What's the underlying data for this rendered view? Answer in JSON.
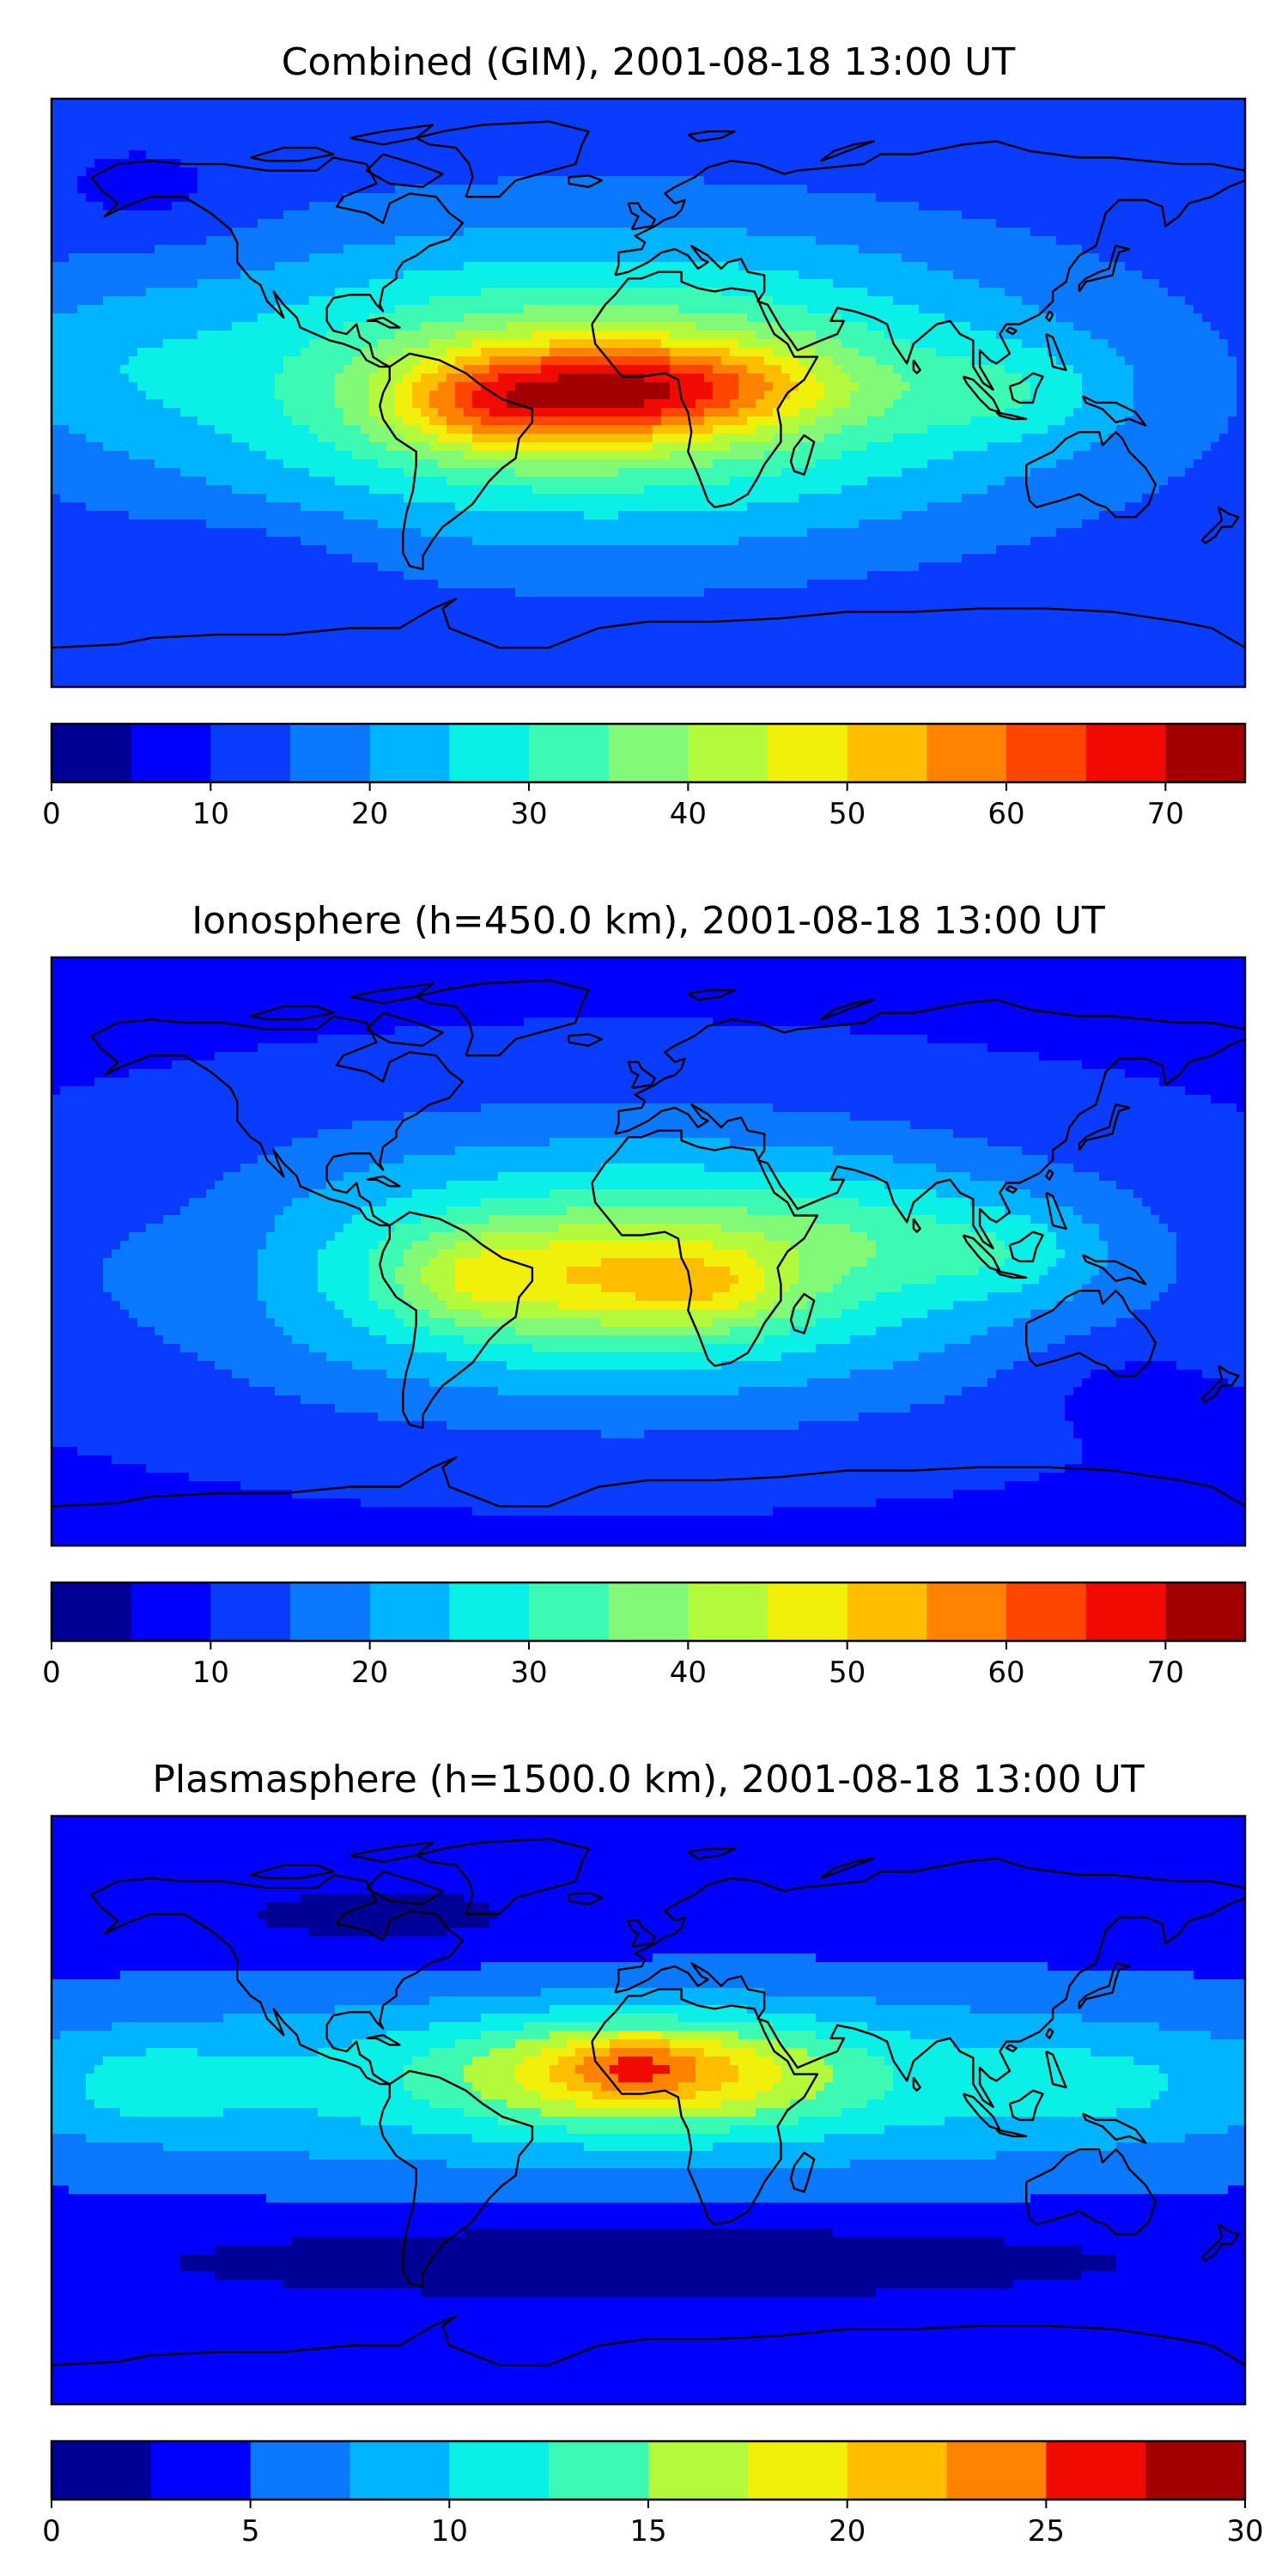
{
  "panels": [
    {
      "title": "Combined (GIM), 2001-08-18 13:00 UT",
      "colorbar": {
        "min": 0,
        "max": 75,
        "step": 5,
        "ticks": [
          0,
          10,
          20,
          30,
          40,
          50,
          60,
          70
        ]
      },
      "field": {
        "background": 11,
        "blobs": [
          {
            "lon": -14,
            "lat": 2,
            "rlon": 135,
            "rlat": 45,
            "amp": 30
          },
          {
            "lon": -20,
            "lat": 0,
            "rlon": 50,
            "rlat": 16,
            "amp": 26
          },
          {
            "lon": 22,
            "lat": 2,
            "rlon": 42,
            "rlat": 13,
            "amp": 12
          },
          {
            "lon": -50,
            "lat": -5,
            "rlon": 26,
            "rlat": 14,
            "amp": 10
          },
          {
            "lon": 110,
            "lat": 0,
            "rlon": 32,
            "rlat": 15,
            "amp": 7
          },
          {
            "lon": -170,
            "lat": 10,
            "rlon": 40,
            "rlat": 25,
            "amp": 5
          },
          {
            "lon": -150,
            "lat": 60,
            "rlon": 30,
            "rlat": 15,
            "amp": -4
          },
          {
            "lon": -120,
            "lat": -50,
            "rlon": 40,
            "rlat": 15,
            "amp": -3
          }
        ]
      }
    },
    {
      "title": "Ionosphere  (h=450.0 km), 2001-08-18 13:00 UT",
      "colorbar": {
        "min": 0,
        "max": 75,
        "step": 5,
        "ticks": [
          0,
          10,
          20,
          30,
          40,
          50,
          60,
          70
        ]
      },
      "field": {
        "background": 9,
        "blobs": [
          {
            "lon": -8,
            "lat": -5,
            "rlon": 135,
            "rlat": 42,
            "amp": 26
          },
          {
            "lon": -18,
            "lat": -8,
            "rlon": 45,
            "rlat": 18,
            "amp": 14
          },
          {
            "lon": 20,
            "lat": -12,
            "rlon": 25,
            "rlat": 12,
            "amp": 10
          },
          {
            "lon": -55,
            "lat": -8,
            "rlon": 22,
            "rlat": 14,
            "amp": 8
          },
          {
            "lon": 60,
            "lat": 5,
            "rlon": 55,
            "rlat": 18,
            "amp": 7
          },
          {
            "lon": 110,
            "lat": 0,
            "rlon": 28,
            "rlat": 14,
            "amp": 6
          },
          {
            "lon": -130,
            "lat": 0,
            "rlon": 30,
            "rlat": 30,
            "amp": -3
          },
          {
            "lon": 140,
            "lat": -40,
            "rlon": 30,
            "rlat": 15,
            "amp": -4
          }
        ]
      }
    },
    {
      "title": "Plasmasphere (h=1500.0 km), 2001-08-18 13:00 UT",
      "colorbar": {
        "min": 0,
        "max": 30,
        "step": 2.5,
        "ticks": [
          0,
          5,
          10,
          15,
          20,
          25,
          30
        ]
      },
      "field": {
        "background": 3.5,
        "blobs": [
          {
            "lon": 0,
            "lat": 8,
            "rlon": 250,
            "rlat": 30,
            "amp": 8
          },
          {
            "lon": 0,
            "lat": 12,
            "rlon": 55,
            "rlat": 16,
            "amp": 11
          },
          {
            "lon": -5,
            "lat": 14,
            "rlon": 18,
            "rlat": 8,
            "amp": 4
          },
          {
            "lon": -150,
            "lat": 8,
            "rlon": 25,
            "rlat": 12,
            "amp": 3
          },
          {
            "lon": 135,
            "lat": 8,
            "rlon": 28,
            "rlat": 12,
            "amp": 2
          },
          {
            "lon": 0,
            "lat": -45,
            "rlon": 150,
            "rlat": 12,
            "amp": -3
          },
          {
            "lon": -80,
            "lat": 58,
            "rlon": 60,
            "rlat": 12,
            "amp": -2
          }
        ]
      }
    }
  ],
  "palette": [
    "#000096",
    "#0000ff",
    "#0a3cff",
    "#0a78ff",
    "#00b4ff",
    "#0af0e6",
    "#3cfab4",
    "#82fa78",
    "#b4fa3c",
    "#f0f00a",
    "#ffbe00",
    "#ff8200",
    "#ff4600",
    "#f00a00",
    "#a00000"
  ],
  "coastline_color": "#000000"
}
